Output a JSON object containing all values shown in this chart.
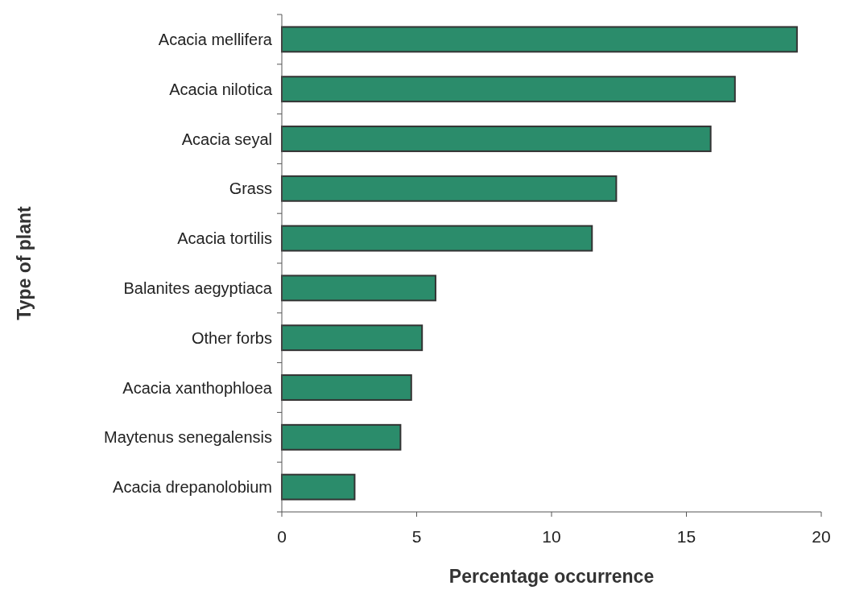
{
  "chart_data": {
    "type": "bar",
    "orientation": "horizontal",
    "xlabel": "Percentage occurrence",
    "ylabel": "Type of plant",
    "categories": [
      "Acacia mellifera",
      "Acacia nilotica",
      "Acacia seyal",
      "Grass",
      "Acacia tortilis",
      "Balanites aegyptiaca",
      "Other forbs",
      "Acacia xanthophloea",
      "Maytenus senegalensis",
      "Acacia drepanolobium"
    ],
    "values": [
      19.1,
      16.8,
      15.9,
      12.4,
      11.5,
      5.7,
      5.2,
      4.8,
      4.4,
      2.7
    ],
    "color": "#2b8c6b",
    "xlim": [
      0,
      20
    ],
    "xticks": [
      0,
      5,
      10,
      15,
      20
    ],
    "grid": false
  }
}
